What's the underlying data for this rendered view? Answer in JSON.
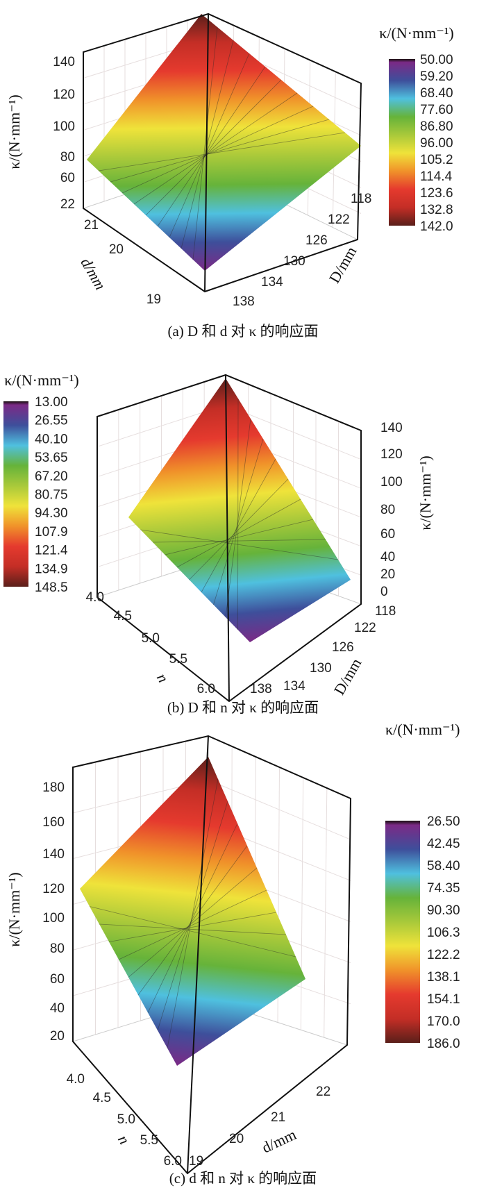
{
  "chart_data": [
    {
      "type": "surface",
      "caption": "(a) D 和 d 对 κ 的响应面",
      "zlabel": "κ/(N·mm⁻¹)",
      "xlabel": "D/mm",
      "ylabel": "d/mm",
      "x_ticks": [
        "118",
        "122",
        "126",
        "130",
        "134",
        "138"
      ],
      "y_ticks": [
        "22",
        "21",
        "20",
        "19"
      ],
      "z_ticks": [
        "140",
        "120",
        "100",
        "80",
        "60"
      ],
      "colorbar_title": "κ/(N·mm⁻¹)",
      "colorbar_ticks": [
        "50.00",
        "59.20",
        "68.40",
        "77.60",
        "86.80",
        "96.00",
        "105.2",
        "114.4",
        "123.6",
        "132.8",
        "142.0"
      ],
      "zlim": [
        50,
        142
      ]
    },
    {
      "type": "surface",
      "caption": "(b) D 和 n 对 κ 的响应面",
      "zlabel": "κ/(N·mm⁻¹)",
      "xlabel": "D/mm",
      "ylabel": "n",
      "x_ticks": [
        "118",
        "122",
        "126",
        "130",
        "134",
        "138"
      ],
      "y_ticks": [
        "4.0",
        "4.5",
        "5.0",
        "5.5",
        "6.0"
      ],
      "z_ticks": [
        "140",
        "120",
        "100",
        "80",
        "60",
        "40",
        "20",
        "0"
      ],
      "colorbar_title": "κ/(N·mm⁻¹)",
      "colorbar_ticks": [
        "13.00",
        "26.55",
        "40.10",
        "53.65",
        "67.20",
        "80.75",
        "94.30",
        "107.9",
        "121.4",
        "134.9",
        "148.5"
      ],
      "zlim": [
        13,
        148.5
      ]
    },
    {
      "type": "surface",
      "caption": "(c) d 和 n 对 κ 的响应面",
      "zlabel": "κ/(N·mm⁻¹)",
      "xlabel": "d/mm",
      "ylabel": "n",
      "x_ticks": [
        "22",
        "21",
        "20",
        "19"
      ],
      "y_ticks": [
        "4.0",
        "4.5",
        "5.0",
        "5.5",
        "6.0"
      ],
      "z_ticks": [
        "180",
        "160",
        "140",
        "120",
        "100",
        "80",
        "60",
        "40",
        "20"
      ],
      "colorbar_title": "κ/(N·mm⁻¹)",
      "colorbar_ticks": [
        "26.50",
        "42.45",
        "58.40",
        "74.35",
        "90.30",
        "106.3",
        "122.2",
        "138.1",
        "154.1",
        "170.0",
        "186.0"
      ],
      "zlim": [
        26.5,
        186
      ]
    }
  ],
  "colors": [
    "#1a1010",
    "#7b2a86",
    "#3e4f9b",
    "#4fc0df",
    "#66b33a",
    "#a9c93a",
    "#efe33a",
    "#f0922a",
    "#e53a2e",
    "#c42e26",
    "#5a1f1a"
  ]
}
